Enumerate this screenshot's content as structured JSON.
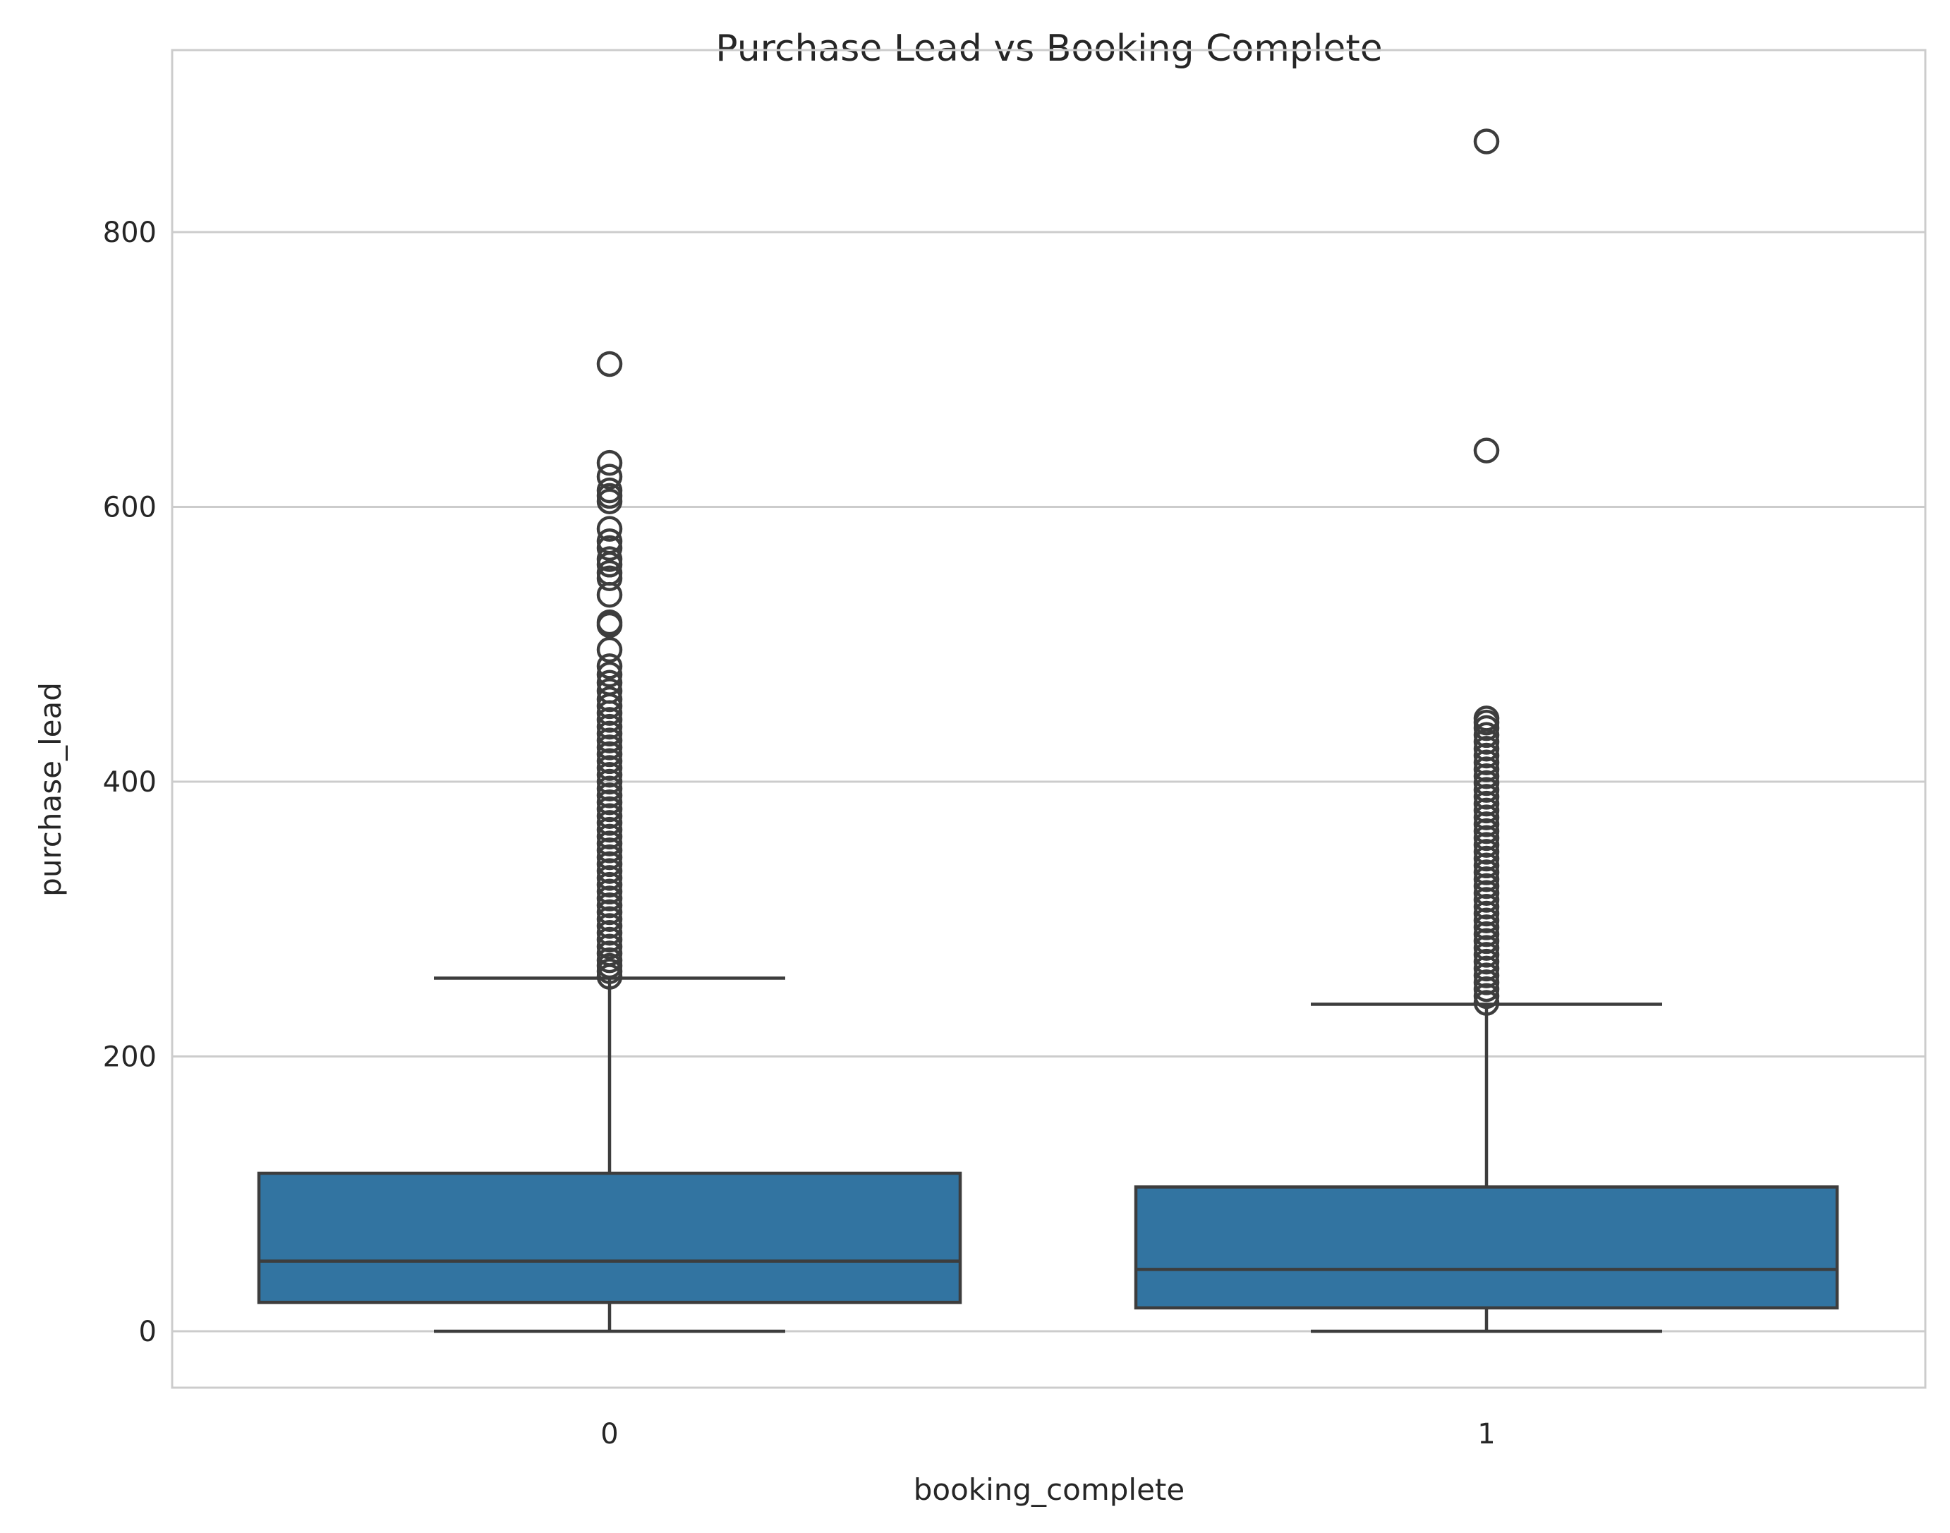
{
  "chart_data": {
    "type": "box",
    "title": "Purchase Lead vs Booking Complete",
    "xlabel": "booking_complete",
    "ylabel": "purchase_lead",
    "ylim": [
      -42,
      910
    ],
    "yticks": [
      0,
      200,
      400,
      600,
      800
    ],
    "grid": "horizontal",
    "box_color": "#3274a1",
    "line_color": "#3d3d3d",
    "categories": [
      "0",
      "1"
    ],
    "series": [
      {
        "category": "0",
        "whisker_low": 0,
        "q1": 21,
        "median": 51,
        "q3": 115,
        "whisker_high": 257,
        "outliers": [
          258,
          262,
          266,
          270,
          275,
          280,
          285,
          290,
          295,
          300,
          305,
          310,
          315,
          320,
          325,
          330,
          335,
          340,
          345,
          350,
          355,
          360,
          365,
          370,
          375,
          380,
          385,
          390,
          395,
          400,
          405,
          410,
          415,
          420,
          425,
          430,
          435,
          440,
          445,
          450,
          455,
          460,
          466,
          472,
          478,
          484,
          496,
          514,
          516,
          536,
          548,
          552,
          558,
          562,
          570,
          575,
          584,
          604,
          608,
          612,
          622,
          632,
          704
        ]
      },
      {
        "category": "1",
        "whisker_low": 0,
        "q1": 17,
        "median": 45,
        "q3": 105,
        "whisker_high": 238,
        "outliers": [
          239,
          244,
          249,
          254,
          259,
          264,
          269,
          274,
          279,
          284,
          289,
          294,
          299,
          304,
          309,
          314,
          319,
          324,
          329,
          334,
          339,
          344,
          349,
          354,
          359,
          364,
          369,
          374,
          379,
          384,
          389,
          394,
          399,
          404,
          409,
          414,
          419,
          424,
          429,
          434,
          439,
          443,
          446,
          641,
          866
        ]
      }
    ]
  }
}
